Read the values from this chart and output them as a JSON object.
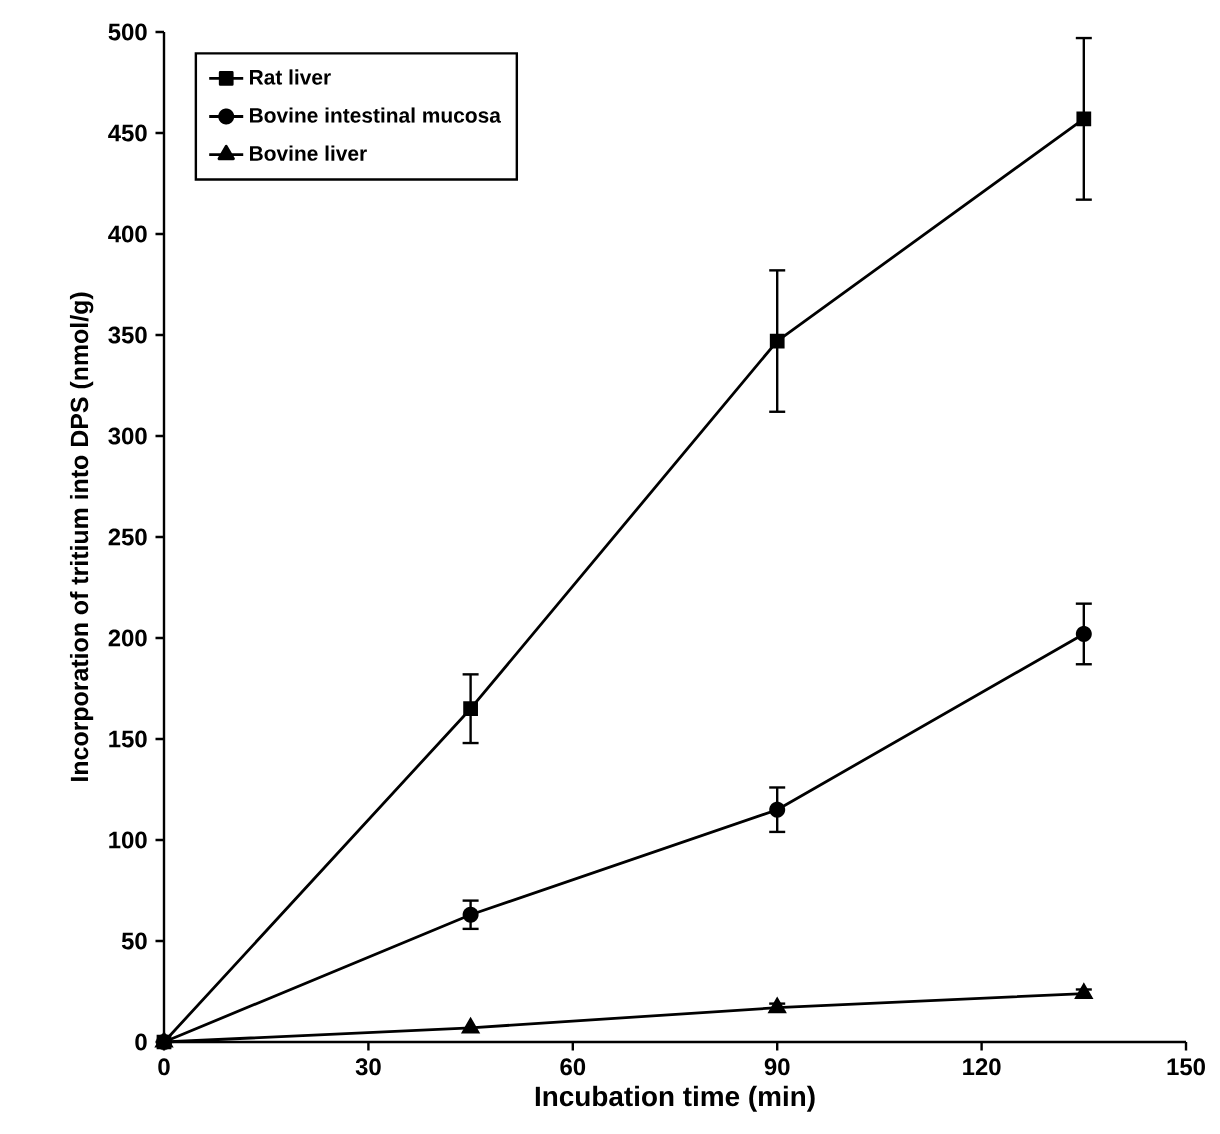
{
  "chart_data": {
    "type": "line",
    "xlabel": "Incubation time (min)",
    "ylabel": "Incorporation of tritium into DPS (nmol/g)",
    "x": [
      0,
      45,
      90,
      135
    ],
    "series": [
      {
        "name": "Rat liver",
        "color": "#000000",
        "marker": "square",
        "values": [
          0,
          165,
          347,
          457
        ],
        "errors": [
          null,
          17,
          35,
          40
        ]
      },
      {
        "name": "Bovine intestinal mucosa",
        "color": "#000000",
        "marker": "circle",
        "values": [
          0,
          63,
          115,
          202
        ],
        "errors": [
          null,
          7,
          11,
          15
        ]
      },
      {
        "name": "Bovine liver",
        "color": "#000000",
        "marker": "triangle",
        "values": [
          0,
          7,
          17,
          24
        ],
        "errors": [
          null,
          null,
          2,
          2
        ]
      }
    ],
    "xlim": [
      0,
      150
    ],
    "xticks": [
      0,
      30,
      60,
      90,
      120,
      150
    ],
    "ylim": [
      0,
      500
    ],
    "yticks": [
      0,
      50,
      100,
      150,
      200,
      250,
      300,
      350,
      400,
      450,
      500
    ],
    "legend": "top left",
    "grid": false,
    "line_style": "solid"
  }
}
